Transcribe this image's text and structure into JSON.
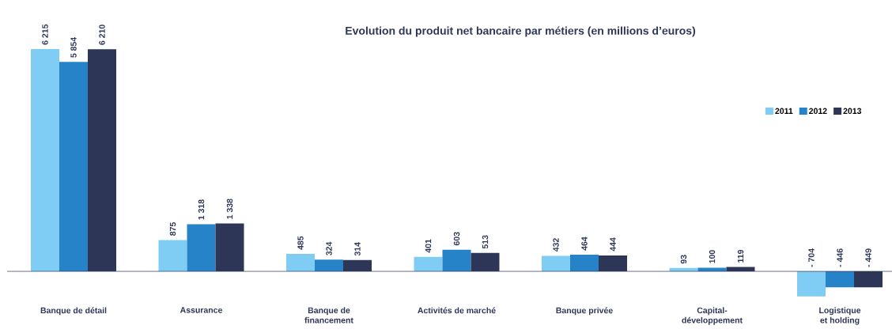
{
  "chart_data": {
    "type": "bar",
    "title": "Evolution du produit net bancaire par métiers (en millions d’euros)",
    "categories": [
      "Banque de détail",
      "Assurance",
      "Banque de\nfinancement",
      "Activités de marché",
      "Banque privée",
      "Capital-\ndéveloppement",
      "Logistique\net holding"
    ],
    "series": [
      {
        "name": "2011",
        "color": "#7fcdf4",
        "values": [
          6215,
          875,
          485,
          401,
          432,
          93,
          -704
        ],
        "value_labels": [
          "6 215",
          "875",
          "485",
          "401",
          "432",
          "93",
          "- 704"
        ]
      },
      {
        "name": "2012",
        "color": "#2783c8",
        "values": [
          5854,
          1318,
          324,
          603,
          464,
          100,
          -446
        ],
        "value_labels": [
          "5 854",
          "1 318",
          "324",
          "603",
          "464",
          "100",
          "- 446"
        ]
      },
      {
        "name": "2013",
        "color": "#2e3658",
        "values": [
          6210,
          1338,
          314,
          513,
          444,
          119,
          -449
        ],
        "value_labels": [
          "6 210",
          "1 338",
          "314",
          "513",
          "444",
          "119",
          "- 449"
        ]
      }
    ],
    "legend": "top right",
    "tick_labels": "x"
  }
}
